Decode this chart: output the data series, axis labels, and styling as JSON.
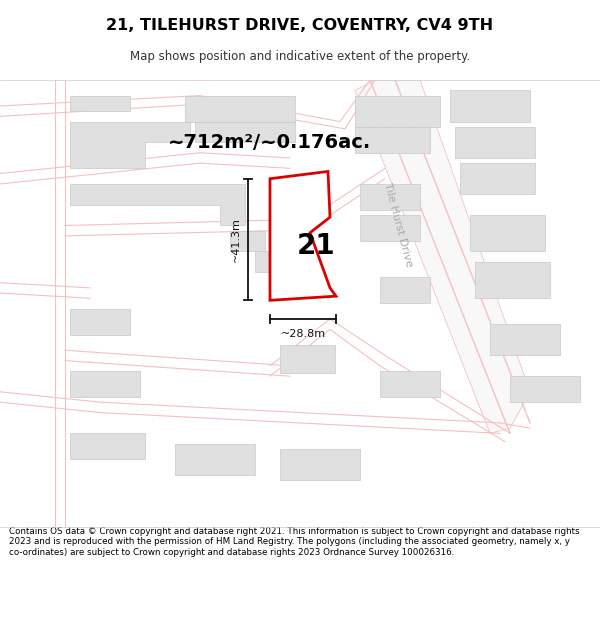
{
  "title": "21, TILEHURST DRIVE, COVENTRY, CV4 9TH",
  "subtitle": "Map shows position and indicative extent of the property.",
  "footer": "Contains OS data © Crown copyright and database right 2021. This information is subject to Crown copyright and database rights 2023 and is reproduced with the permission of HM Land Registry. The polygons (including the associated geometry, namely x, y co-ordinates) are subject to Crown copyright and database rights 2023 Ordnance Survey 100026316.",
  "area_label": "~712m²/~0.176ac.",
  "property_number": "21",
  "width_label": "~28.8m",
  "height_label": "~41.3m",
  "street_label": "Tile Hurst Drive",
  "map_bg": "#ffffff",
  "road_color": "#f5c0c0",
  "building_color": "#e0e0e0",
  "building_edge": "#c8c8c8",
  "property_fill": "white",
  "property_edge": "#dd0000",
  "dim_color": "#111111"
}
